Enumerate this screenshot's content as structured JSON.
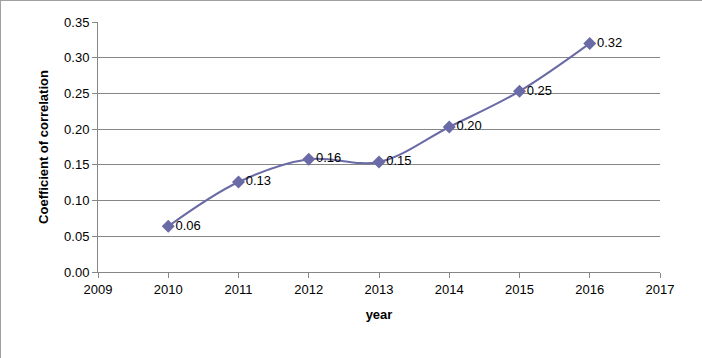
{
  "chart_data": {
    "type": "line",
    "x_label": "year",
    "y_label": "Coefficient of correlation",
    "x": [
      2010,
      2011,
      2012,
      2013,
      2014,
      2015,
      2016
    ],
    "values": [
      0.064,
      0.126,
      0.158,
      0.154,
      0.203,
      0.253,
      0.32
    ],
    "value_labels": [
      "0.06",
      "0.13",
      "0.16",
      "0.15",
      "0.20",
      "0.25",
      "0.32"
    ],
    "data_labels": true,
    "color": "#6a6aa6",
    "marker": "diamond",
    "line_style": "smooth",
    "xlim": [
      2009,
      2017
    ],
    "xticks": [
      2009,
      2010,
      2011,
      2012,
      2013,
      2014,
      2015,
      2016,
      2017
    ],
    "ylim": [
      0,
      0.35
    ],
    "yticks": [
      {
        "value": 0,
        "label": "0.00"
      },
      {
        "value": 0.05,
        "label": "0.05"
      },
      {
        "value": 0.1,
        "label": "0.10"
      },
      {
        "value": 0.15,
        "label": "0.15"
      },
      {
        "value": 0.2,
        "label": "0.20"
      },
      {
        "value": 0.25,
        "label": "0.25"
      },
      {
        "value": 0.3,
        "label": "0.30"
      },
      {
        "value": 0.35,
        "label": "0.35"
      }
    ],
    "grid": true
  }
}
